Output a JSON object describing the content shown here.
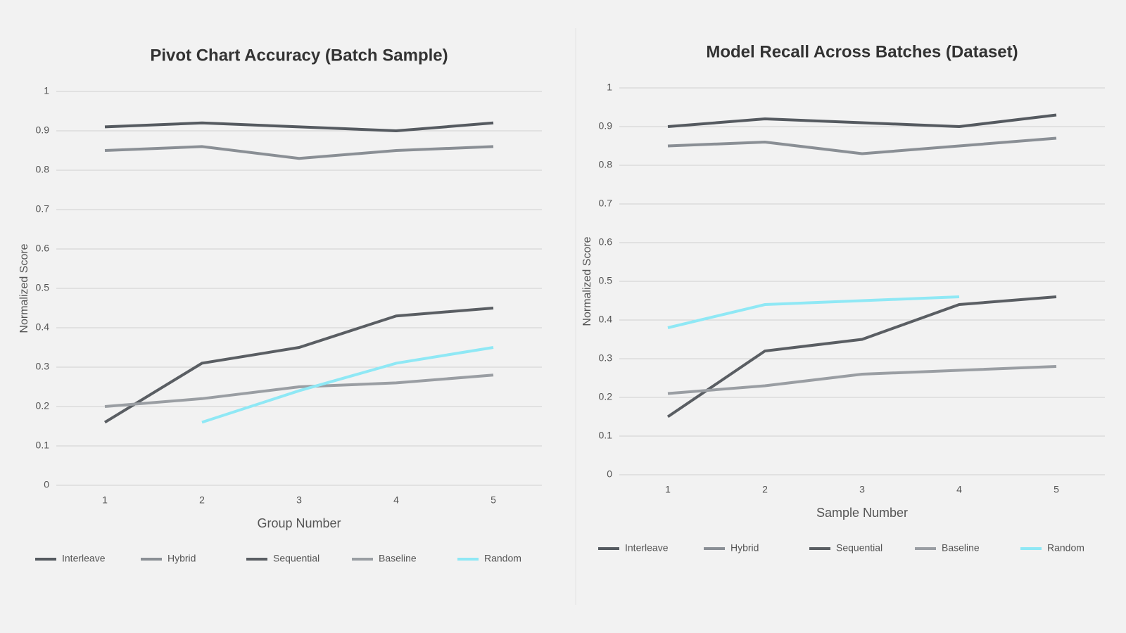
{
  "chart_data": [
    {
      "type": "line",
      "title": "Pivot Chart Accuracy (Batch Sample)",
      "x_label": "Group Number",
      "y_label": "Normalized Score",
      "categories": [
        "1",
        "2",
        "3",
        "4",
        "5"
      ],
      "ylim": [
        0,
        1
      ],
      "yticks": [
        0,
        0.1,
        0.2,
        0.3,
        0.4,
        0.5,
        0.6,
        0.7,
        0.8,
        0.9,
        1
      ],
      "grid": true,
      "legend": "bottom",
      "series": [
        {
          "name": "Interleave",
          "color": "#555a60",
          "values": [
            0.91,
            0.92,
            0.91,
            0.9,
            0.92
          ]
        },
        {
          "name": "Hybrid",
          "color": "#8a8f95",
          "values": [
            0.85,
            0.86,
            0.83,
            0.85,
            0.86
          ]
        },
        {
          "name": "Sequential",
          "color": "#5a5e63",
          "values": [
            0.16,
            0.31,
            0.35,
            0.43,
            0.45
          ]
        },
        {
          "name": "Baseline",
          "color": "#9a9ea3",
          "values": [
            0.2,
            0.22,
            0.25,
            0.26,
            0.28
          ]
        },
        {
          "name": "Random",
          "color": "#8fe8f5",
          "values": [
            null,
            0.16,
            0.24,
            0.31,
            0.35
          ]
        }
      ]
    },
    {
      "type": "line",
      "title": "Model Recall Across Batches (Dataset)",
      "x_label": "Sample Number",
      "y_label": "Normalized Score",
      "categories": [
        "1",
        "2",
        "3",
        "4",
        "5"
      ],
      "ylim": [
        0,
        1
      ],
      "yticks": [
        0,
        0.1,
        0.2,
        0.3,
        0.4,
        0.5,
        0.6,
        0.7,
        0.8,
        0.9,
        1
      ],
      "grid": true,
      "legend": "bottom",
      "series": [
        {
          "name": "Interleave",
          "color": "#555a60",
          "values": [
            0.9,
            0.92,
            0.91,
            0.9,
            0.93
          ]
        },
        {
          "name": "Hybrid",
          "color": "#8a8f95",
          "values": [
            0.85,
            0.86,
            0.83,
            0.85,
            0.87
          ]
        },
        {
          "name": "Sequential",
          "color": "#5a5e63",
          "values": [
            0.15,
            0.32,
            0.35,
            0.44,
            0.46
          ]
        },
        {
          "name": "Baseline",
          "color": "#9a9ea3",
          "values": [
            0.21,
            0.23,
            0.26,
            0.27,
            0.28
          ]
        },
        {
          "name": "Random",
          "color": "#8fe8f5",
          "values": [
            0.38,
            0.44,
            0.45,
            0.46,
            null
          ]
        }
      ]
    }
  ]
}
